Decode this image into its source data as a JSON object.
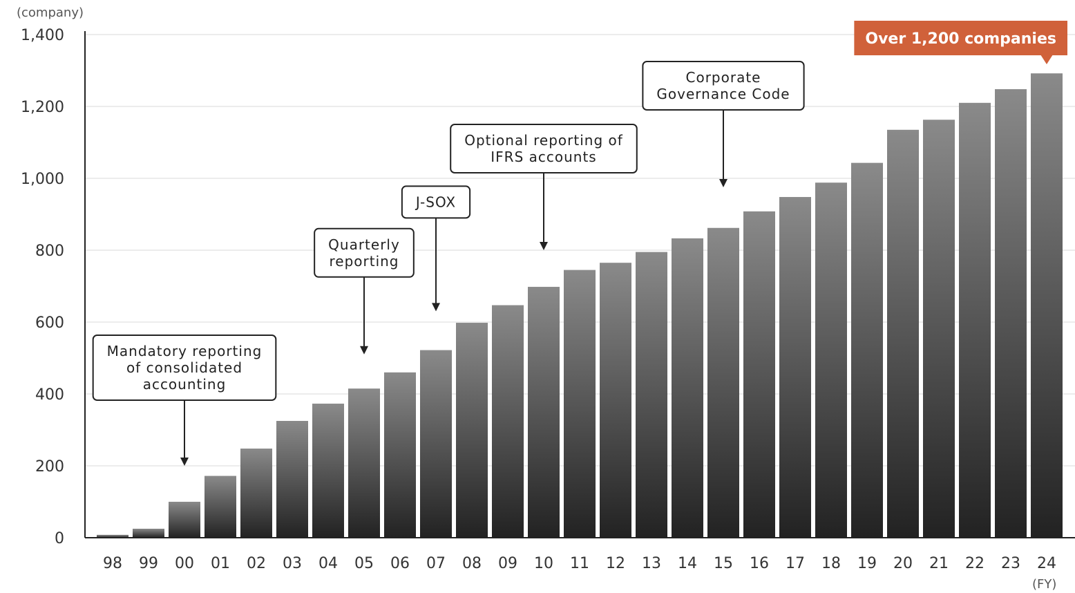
{
  "chart_data": {
    "type": "bar",
    "y_unit_label": "(company)",
    "x_unit_label": "(FY)",
    "categories": [
      "98",
      "99",
      "00",
      "01",
      "02",
      "03",
      "04",
      "05",
      "06",
      "07",
      "08",
      "09",
      "10",
      "11",
      "12",
      "13",
      "14",
      "15",
      "16",
      "17",
      "18",
      "19",
      "20",
      "21",
      "22",
      "23",
      "24"
    ],
    "values": [
      8,
      25,
      100,
      172,
      248,
      325,
      373,
      415,
      460,
      522,
      598,
      647,
      698,
      745,
      765,
      795,
      833,
      862,
      908,
      948,
      988,
      1043,
      1135,
      1163,
      1210,
      1248,
      1292
    ],
    "ylim": [
      0,
      1400
    ],
    "yticks": [
      0,
      200,
      400,
      600,
      800,
      1000,
      1200,
      1400
    ],
    "ytick_labels": [
      "0",
      "200",
      "400",
      "600",
      "800",
      "1,000",
      "1,200",
      "1,400"
    ],
    "grid": true,
    "colors": {
      "bar_top": "#8a8a8a",
      "bar_bottom": "#222222",
      "callout": "#d0613a",
      "grid": "#e6e6e6"
    },
    "annotations": [
      {
        "lines": [
          "Mandatory reporting",
          "of consolidated",
          "accounting"
        ],
        "category": "00",
        "arrow_to_value": 200
      },
      {
        "lines": [
          "Quarterly",
          "reporting"
        ],
        "category": "05",
        "arrow_to_value": 510
      },
      {
        "lines": [
          "J-SOX"
        ],
        "category": "07",
        "arrow_to_value": 630
      },
      {
        "lines": [
          "Optional reporting of",
          "IFRS accounts"
        ],
        "category": "10",
        "arrow_to_value": 800
      },
      {
        "lines": [
          "Corporate",
          "Governance Code"
        ],
        "category": "15",
        "arrow_to_value": 975
      }
    ],
    "callout": {
      "text": "Over 1,200 companies",
      "category": "24"
    }
  }
}
